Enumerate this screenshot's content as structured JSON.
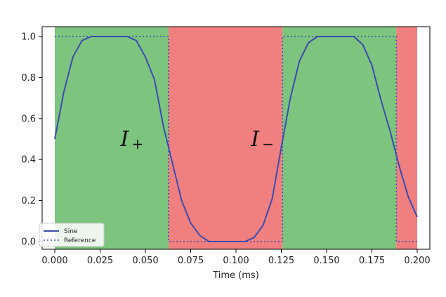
{
  "chart_data": {
    "type": "line",
    "xlabel": "Time (ms)",
    "ylabel": "",
    "xlim": [
      0.0,
      0.2
    ],
    "ylim": [
      -0.03,
      1.03
    ],
    "x_ticks": [
      "0.000",
      "0.025",
      "0.050",
      "0.075",
      "0.100",
      "0.125",
      "0.150",
      "0.175",
      "0.200"
    ],
    "y_ticks": [
      "0.0",
      "0.2",
      "0.4",
      "0.6",
      "0.8",
      "1.0"
    ],
    "grid": false,
    "legend_position": "bottom-left",
    "regions": [
      {
        "x": [
          0.0,
          0.0628
        ],
        "label": "I",
        "subscript": "+",
        "color": "#7dc47f"
      },
      {
        "x": [
          0.0628,
          0.1257
        ],
        "label": "I",
        "subscript": "−",
        "color": "#f07f7f"
      },
      {
        "x": [
          0.1257,
          0.1885
        ],
        "label": "",
        "subscript": "",
        "color": "#7dc47f"
      },
      {
        "x": [
          0.1885,
          0.2
        ],
        "label": "",
        "subscript": "",
        "color": "#f07f7f"
      }
    ],
    "series": [
      {
        "name": "Sine",
        "style": "solid",
        "color": "#3b4cb0",
        "x": [
          0.0,
          0.005,
          0.01,
          0.015,
          0.02,
          0.025,
          0.03,
          0.035,
          0.04,
          0.045,
          0.05,
          0.055,
          0.06,
          0.065,
          0.07,
          0.075,
          0.08,
          0.085,
          0.09,
          0.095,
          0.1,
          0.105,
          0.11,
          0.115,
          0.12,
          0.125,
          0.13,
          0.135,
          0.14,
          0.145,
          0.15,
          0.155,
          0.16,
          0.165,
          0.17,
          0.175,
          0.18,
          0.185,
          0.19,
          0.195,
          0.2
        ],
        "values": [
          0.5,
          0.73,
          0.9,
          0.98,
          1.0,
          1.0,
          1.0,
          1.0,
          1.0,
          0.98,
          0.9,
          0.79,
          0.56,
          0.38,
          0.2,
          0.09,
          0.03,
          0.0,
          0.0,
          0.0,
          0.0,
          0.0,
          0.02,
          0.08,
          0.21,
          0.46,
          0.7,
          0.88,
          0.97,
          1.0,
          1.0,
          1.0,
          1.0,
          1.0,
          0.96,
          0.86,
          0.69,
          0.54,
          0.37,
          0.22,
          0.12
        ]
      },
      {
        "name": "Reference",
        "style": "dotted",
        "color": "#3b4cb0",
        "x": [
          0.0,
          0.0628,
          0.0628,
          0.1257,
          0.1257,
          0.1885,
          0.1885,
          0.2
        ],
        "values": [
          1.0,
          1.0,
          0.0,
          0.0,
          1.0,
          1.0,
          0.0,
          0.0
        ]
      }
    ]
  }
}
